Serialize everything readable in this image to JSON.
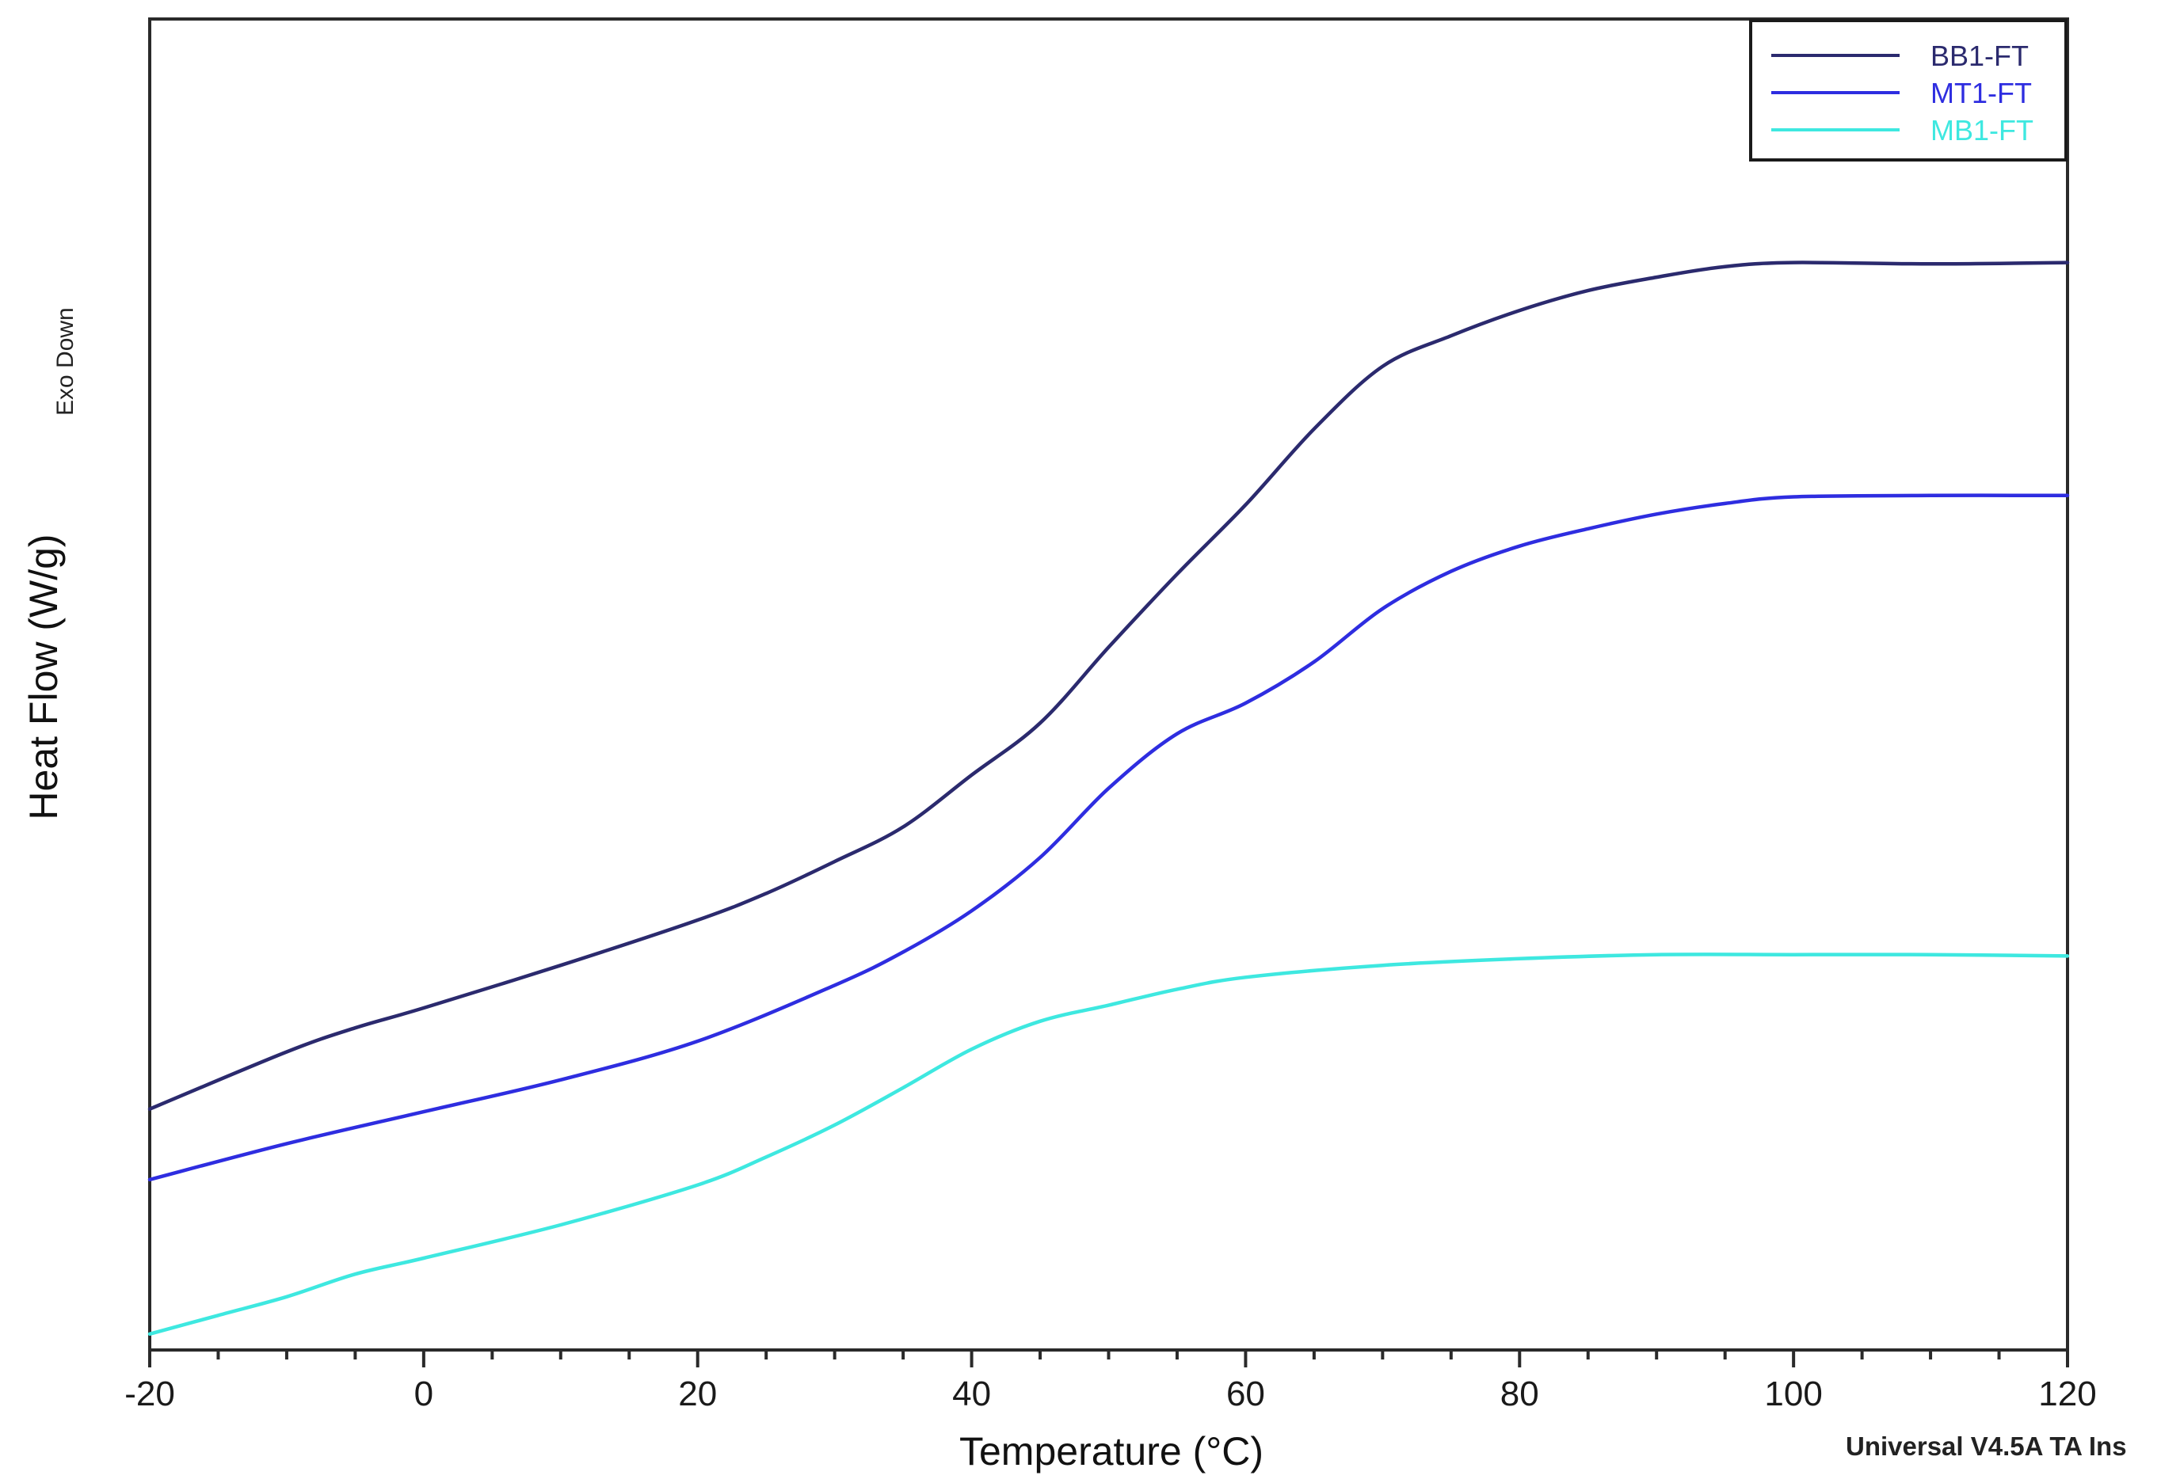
{
  "chart_data": {
    "type": "line",
    "title": "",
    "xlabel": "Temperature (°C)",
    "ylabel": "Heat Flow (W/g)",
    "y_annotation": "Exo Down",
    "footer": "Universal V4.5A TA Ins",
    "xlim": [
      -20,
      120
    ],
    "x_ticks": [
      -20,
      0,
      20,
      40,
      60,
      80,
      100,
      120
    ],
    "x_tick_labels": [
      "-20",
      "0",
      "20",
      "40",
      "60",
      "80",
      "100",
      "120"
    ],
    "x_minor_step": 5,
    "ylim": [
      0,
      100
    ],
    "y_units_note": "relative position (no y tick labels shown)",
    "grid": false,
    "legend_position": "top-right",
    "series": [
      {
        "name": "BB1-FT",
        "color": "#2b2a6e",
        "x": [
          -20,
          -10,
          -5,
          0,
          10,
          20,
          25,
          30,
          35,
          40,
          45,
          50,
          55,
          60,
          65,
          70,
          75,
          80,
          85,
          90,
          95,
          100,
          110,
          120
        ],
        "values": [
          18.1,
          22.4,
          24.2,
          25.7,
          28.9,
          32.3,
          34.3,
          36.7,
          39.3,
          43.2,
          47.1,
          52.8,
          58.3,
          63.5,
          69.2,
          73.9,
          76.2,
          78.1,
          79.6,
          80.6,
          81.4,
          81.7,
          81.6,
          81.7
        ]
      },
      {
        "name": "MT1-FT",
        "color": "#2e2de0",
        "x": [
          -20,
          -10,
          0,
          10,
          20,
          30,
          35,
          40,
          45,
          50,
          55,
          60,
          65,
          70,
          75,
          80,
          85,
          90,
          95,
          100,
          110,
          120
        ],
        "values": [
          12.8,
          15.5,
          17.9,
          20.3,
          23.2,
          27.4,
          29.9,
          33.0,
          37.0,
          42.2,
          46.3,
          48.6,
          51.7,
          55.7,
          58.5,
          60.4,
          61.7,
          62.8,
          63.6,
          64.1,
          64.2,
          64.2
        ]
      },
      {
        "name": "MB1-FT",
        "color": "#3ee8e0",
        "x": [
          -20,
          -15,
          -10,
          -5,
          0,
          10,
          20,
          25,
          30,
          35,
          40,
          45,
          50,
          55,
          60,
          70,
          80,
          90,
          100,
          110,
          120
        ],
        "values": [
          1.2,
          2.6,
          4.0,
          5.7,
          6.9,
          9.4,
          12.4,
          14.5,
          16.9,
          19.7,
          22.6,
          24.7,
          25.9,
          27.1,
          28.0,
          28.9,
          29.4,
          29.7,
          29.7,
          29.7,
          29.6
        ]
      }
    ]
  },
  "labels": {
    "xlabel": "Temperature (°C)",
    "ylabel": "Heat Flow (W/g)",
    "exo": "Exo Down",
    "footer": "Universal V4.5A TA Ins"
  }
}
